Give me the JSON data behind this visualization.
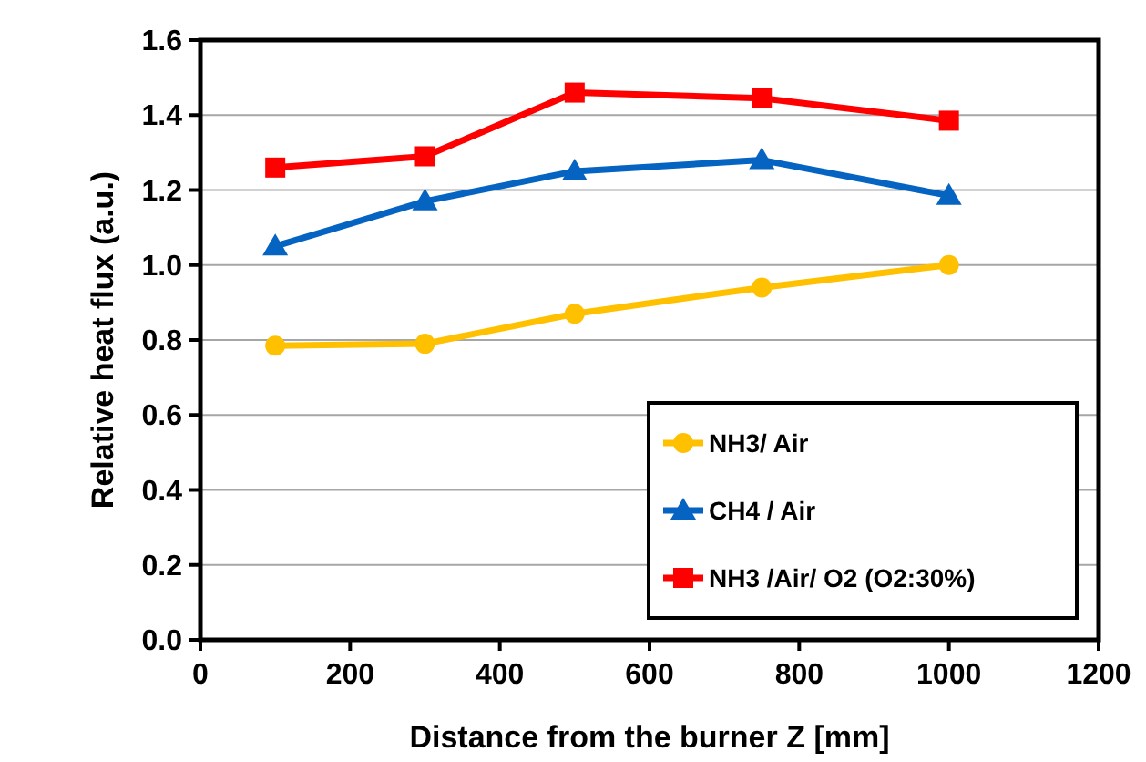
{
  "chart_data": {
    "type": "line",
    "xlabel": "Distance from the burner  Z [mm]",
    "ylabel": "Relative heat flux  (a.u.)",
    "x": [
      100,
      300,
      500,
      750,
      1000
    ],
    "series": [
      {
        "name": "NH3/ Air",
        "color": "#ffc000",
        "marker": "circle",
        "values": [
          0.785,
          0.79,
          0.87,
          0.94,
          1.0
        ]
      },
      {
        "name": "CH4 / Air",
        "color": "#0563c1",
        "marker": "triangle",
        "values": [
          1.05,
          1.17,
          1.25,
          1.28,
          1.185
        ]
      },
      {
        "name": "NH3 /Air/ O2 (O2:30%)",
        "color": "#ff0000",
        "marker": "square",
        "values": [
          1.26,
          1.29,
          1.46,
          1.445,
          1.385
        ]
      }
    ],
    "xlim": [
      0,
      1200
    ],
    "xticks": [
      0,
      200,
      400,
      600,
      800,
      1000,
      1200
    ],
    "ylim": [
      0,
      1.6
    ],
    "yticks": [
      {
        "value": 0,
        "label": "0.0"
      },
      {
        "value": 0.2,
        "label": "0.2"
      },
      {
        "value": 0.4,
        "label": "0.4"
      },
      {
        "value": 0.6,
        "label": "0.6"
      },
      {
        "value": 0.8,
        "label": "0.8"
      },
      {
        "value": 1.0,
        "label": "1.0"
      },
      {
        "value": 1.2,
        "label": "1.2"
      },
      {
        "value": 1.4,
        "label": "1.4"
      },
      {
        "value": 1.6,
        "label": "1.6"
      }
    ],
    "grid": "y",
    "legend": "bottom right",
    "line_style": "solid"
  }
}
